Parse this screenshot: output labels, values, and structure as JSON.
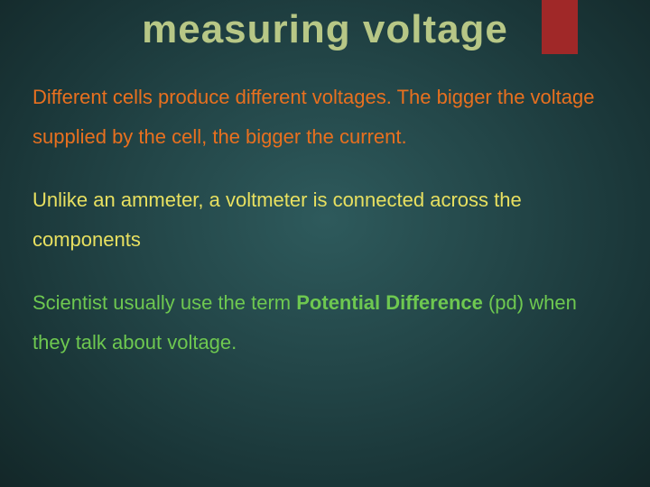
{
  "slide": {
    "title": "measuring voltage",
    "accent_color": "#a02828",
    "background_gradient": [
      "#2e5a5c",
      "#234648",
      "#1a3638",
      "#132728"
    ],
    "title_color": "#b7c786",
    "title_fontsize": 44,
    "body_fontsize": 22,
    "paragraphs": [
      {
        "text": "Different cells produce different voltages. The bigger the voltage supplied by the cell, the bigger the current.",
        "color": "#e8701f"
      },
      {
        "text": "Unlike an ammeter, a voltmeter is connected across the components",
        "color": "#e8e060"
      },
      {
        "prefix": "Scientist usually use the term ",
        "bold": "Potential Difference",
        "suffix": " (pd) when they talk about voltage.",
        "color": "#6ec850"
      }
    ]
  }
}
